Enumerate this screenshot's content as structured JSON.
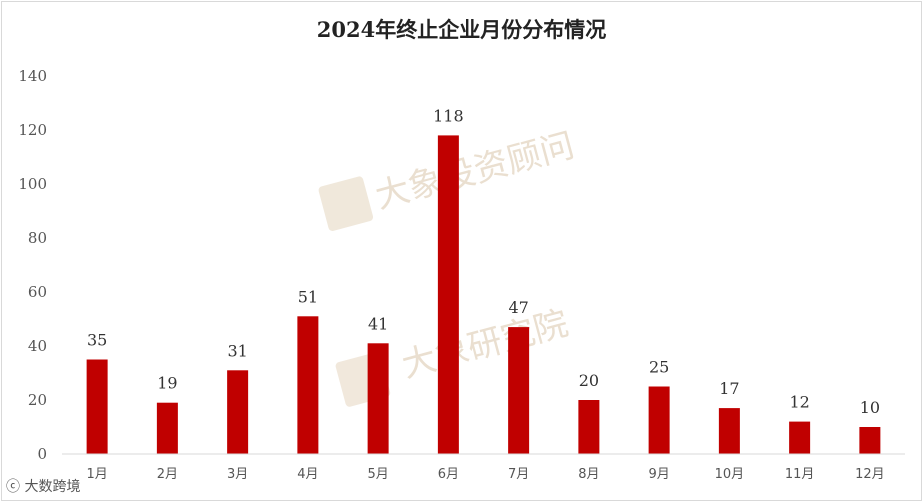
{
  "chart_data": {
    "type": "bar",
    "title": "2024年终止企业月份分布情况",
    "categories": [
      "1月",
      "2月",
      "3月",
      "4月",
      "5月",
      "6月",
      "7月",
      "8月",
      "9月",
      "10月",
      "11月",
      "12月"
    ],
    "values": [
      35,
      19,
      31,
      51,
      41,
      118,
      47,
      20,
      25,
      17,
      12,
      10
    ],
    "ylim": [
      0,
      140
    ],
    "yticks": [
      0,
      20,
      40,
      60,
      80,
      100,
      120,
      140
    ],
    "xlabel": "",
    "ylabel": "",
    "grid": false,
    "legend": "none",
    "bar_color": "#c00000"
  },
  "watermarks": [
    "大象投资顾问",
    "大象研究院"
  ],
  "footer": "大数跨境"
}
